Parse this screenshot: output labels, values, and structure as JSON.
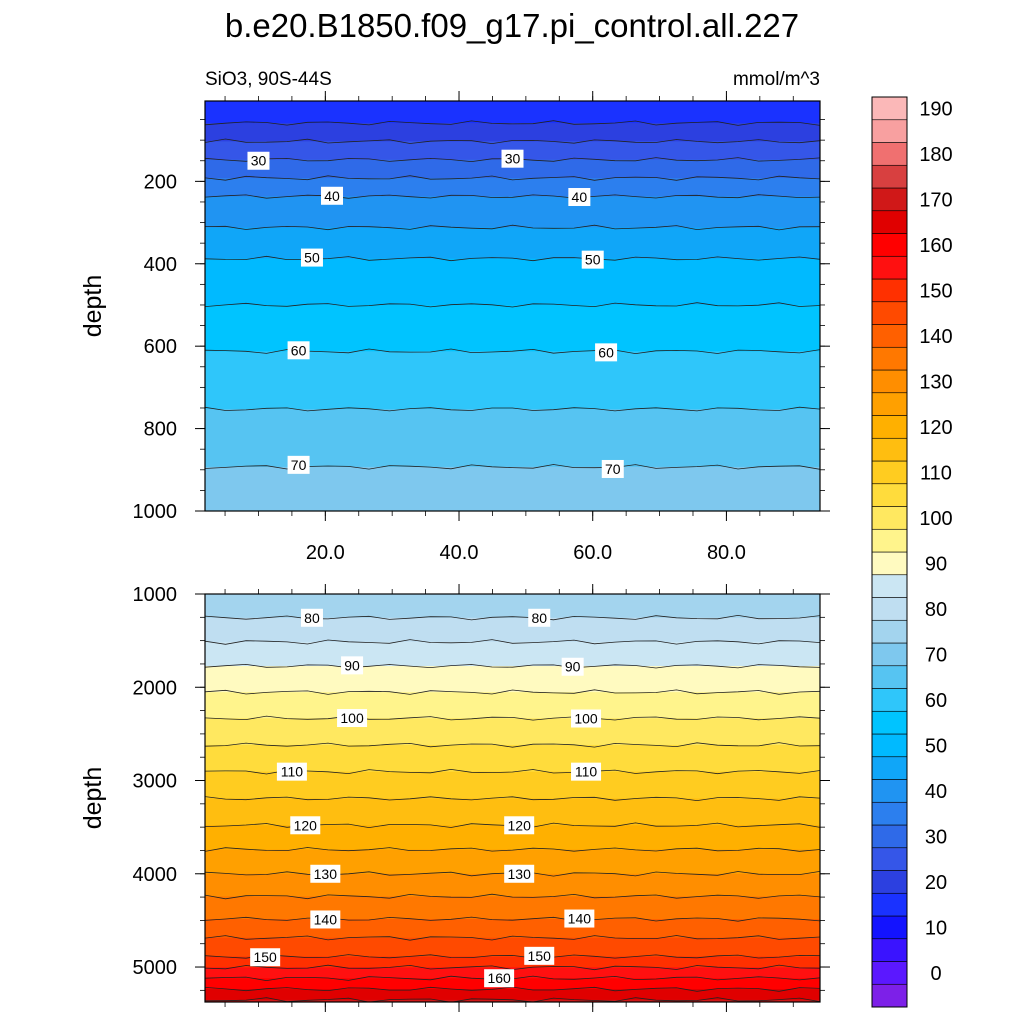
{
  "chart_data": {
    "type": "contour",
    "title": "b.e20.B1850.f09_g17.pi_control.all.227",
    "variable_label": "SiO3, 90S-44S",
    "units_label": "mmol/m^3",
    "x_range": [
      2,
      94
    ],
    "x_ticks": [
      "20.0",
      "40.0",
      "60.0",
      "80.0"
    ],
    "colorbar": {
      "levels": [
        -5,
        0,
        5,
        10,
        15,
        20,
        25,
        30,
        35,
        40,
        45,
        50,
        55,
        60,
        65,
        70,
        75,
        80,
        85,
        90,
        95,
        100,
        105,
        110,
        115,
        120,
        125,
        130,
        135,
        140,
        145,
        150,
        155,
        160,
        165,
        170,
        175,
        180,
        185,
        190,
        195
      ],
      "labels": [
        "0",
        "10",
        "20",
        "30",
        "40",
        "50",
        "60",
        "70",
        "80",
        "90",
        "100",
        "110",
        "120",
        "130",
        "140",
        "150",
        "160",
        "170",
        "180",
        "190"
      ],
      "colors": [
        "#7d20e8",
        "#5b18ff",
        "#3a13ff",
        "#1313ff",
        "#1a32ff",
        "#2c40e0",
        "#3556e8",
        "#2f6ae8",
        "#2c7fee",
        "#2094f2",
        "#10a6f8",
        "#00baff",
        "#00c4ff",
        "#2fc6fa",
        "#56c4f2",
        "#7ec8ee",
        "#a3d4ee",
        "#bfdef1",
        "#cbe6f3",
        "#fffac0",
        "#fff48c",
        "#ffe860",
        "#ffdc3c",
        "#ffcc20",
        "#ffbe10",
        "#ffb000",
        "#ffa000",
        "#ff8e00",
        "#ff7800",
        "#ff6000",
        "#ff4a00",
        "#ff3000",
        "#ff1010",
        "#ff0000",
        "#e00000",
        "#d01818",
        "#d84040",
        "#f07070",
        "#f8a0a0",
        "#fbb8b8"
      ]
    },
    "panels": [
      {
        "name": "upper",
        "ylabel": "depth",
        "y_range": [
          5,
          1000
        ],
        "y_ticks": [
          "200",
          "400",
          "600",
          "800",
          "1000"
        ],
        "x_tick_labels_shown": true,
        "contour_levels": [
          20,
          25,
          30,
          35,
          40,
          45,
          50,
          55,
          60,
          65,
          70,
          75
        ],
        "labeled_contours": [
          {
            "value": "30",
            "x": 10,
            "depth": 150
          },
          {
            "value": "30",
            "x": 48,
            "depth": 145
          },
          {
            "value": "40",
            "x": 21,
            "depth": 235
          },
          {
            "value": "40",
            "x": 58,
            "depth": 238
          },
          {
            "value": "50",
            "x": 18,
            "depth": 385
          },
          {
            "value": "50",
            "x": 60,
            "depth": 390
          },
          {
            "value": "60",
            "x": 16,
            "depth": 610
          },
          {
            "value": "60",
            "x": 62,
            "depth": 615
          },
          {
            "value": "70",
            "x": 16,
            "depth": 888
          },
          {
            "value": "70",
            "x": 63,
            "depth": 898
          }
        ]
      },
      {
        "name": "lower",
        "ylabel": "depth",
        "y_range": [
          1000,
          5375
        ],
        "y_ticks": [
          "1000",
          "2000",
          "3000",
          "4000",
          "5000"
        ],
        "x_tick_labels_shown": false,
        "contour_levels": [
          75,
          80,
          85,
          90,
          95,
          100,
          105,
          110,
          115,
          120,
          125,
          130,
          135,
          140,
          145,
          150,
          155,
          160,
          165,
          170
        ],
        "labeled_contours": [
          {
            "value": "80",
            "x": 18,
            "depth": 1255
          },
          {
            "value": "80",
            "x": 52,
            "depth": 1255
          },
          {
            "value": "90",
            "x": 24,
            "depth": 1765
          },
          {
            "value": "90",
            "x": 57,
            "depth": 1780
          },
          {
            "value": "100",
            "x": 24,
            "depth": 2330
          },
          {
            "value": "100",
            "x": 59,
            "depth": 2335
          },
          {
            "value": "110",
            "x": 15,
            "depth": 2905
          },
          {
            "value": "110",
            "x": 59,
            "depth": 2905
          },
          {
            "value": "120",
            "x": 17,
            "depth": 3480
          },
          {
            "value": "120",
            "x": 49,
            "depth": 3480
          },
          {
            "value": "130",
            "x": 20,
            "depth": 4000
          },
          {
            "value": "130",
            "x": 49,
            "depth": 4000
          },
          {
            "value": "140",
            "x": 20,
            "depth": 4490
          },
          {
            "value": "140",
            "x": 58,
            "depth": 4480
          },
          {
            "value": "150",
            "x": 11,
            "depth": 4895
          },
          {
            "value": "150",
            "x": 52,
            "depth": 4880
          },
          {
            "value": "160",
            "x": 46,
            "depth": 5120
          }
        ]
      }
    ]
  }
}
